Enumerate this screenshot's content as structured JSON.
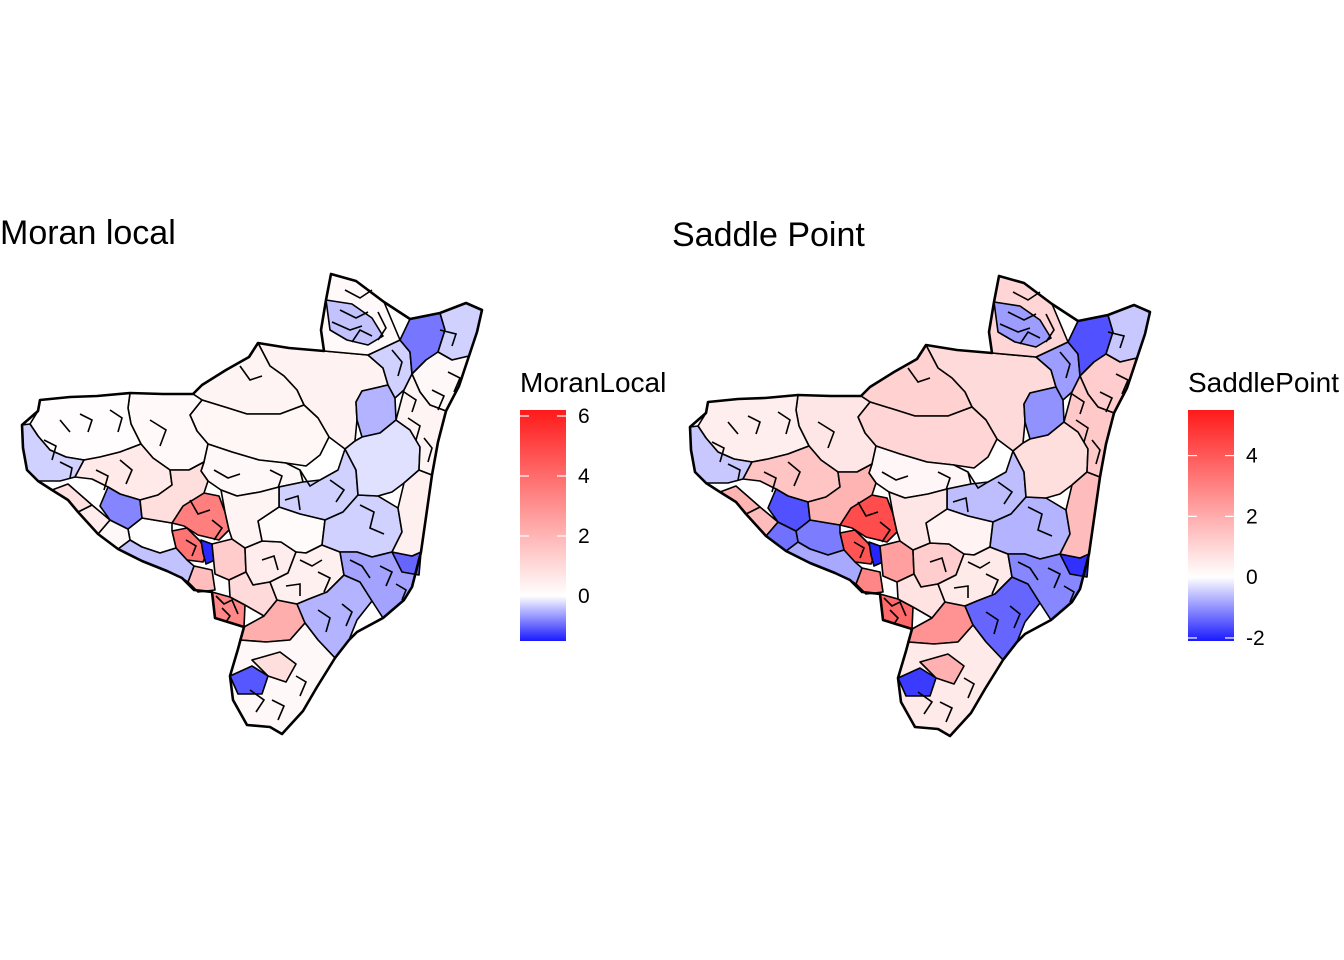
{
  "panels": [
    {
      "title": "Moran local",
      "legend": {
        "title": "MoranLocal",
        "min": -1.5,
        "max": 6.2,
        "ticks": [
          0,
          2,
          4,
          6
        ],
        "tick_labels": [
          "0",
          "2",
          "4",
          "6"
        ],
        "low_color": "#1a1aff",
        "mid_color": "#ffffff",
        "high_color": "#ff1a1a"
      }
    },
    {
      "title": "Saddle Point",
      "legend": {
        "title": "SaddlePoint",
        "min": -2.1,
        "max": 5.5,
        "ticks": [
          -2,
          0,
          2,
          4
        ],
        "tick_labels": [
          "-2",
          "0",
          "2",
          "4"
        ],
        "low_color": "#1a1aff",
        "mid_color": "#ffffff",
        "high_color": "#ff1a1a"
      }
    }
  ]
}
